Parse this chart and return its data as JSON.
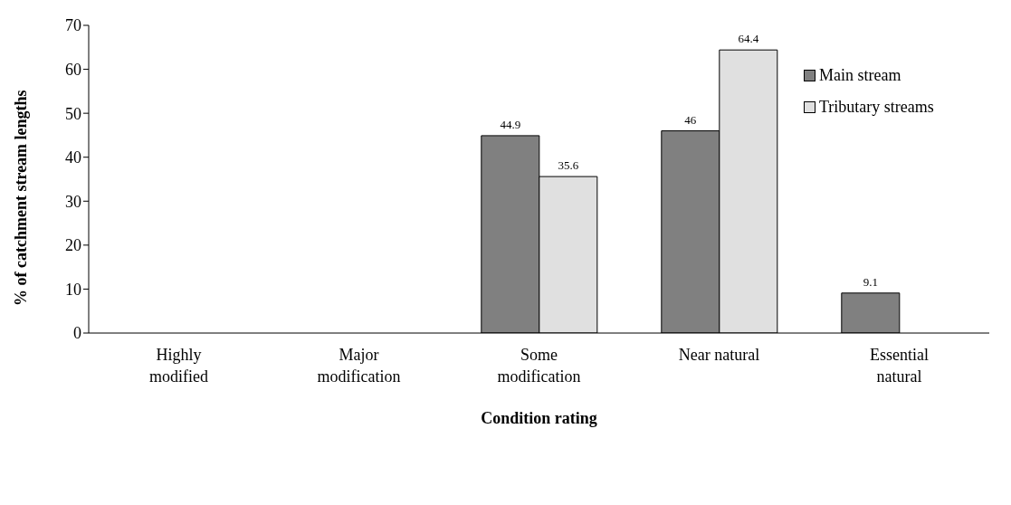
{
  "chart_data": {
    "type": "bar",
    "xlabel": "Condition rating",
    "ylabel": "% of catchment stream lengths",
    "categories": [
      "Highly modified",
      "Major modification",
      "Some modification",
      "Near natural",
      "Essential natural"
    ],
    "series": [
      {
        "name": "Main stream",
        "color": "#808080",
        "values": [
          null,
          null,
          44.9,
          46,
          9.1
        ],
        "value_labels": [
          null,
          null,
          "44.9",
          "46",
          "9.1"
        ]
      },
      {
        "name": "Tributary streams",
        "color": "#e0e0e0",
        "values": [
          null,
          null,
          35.6,
          64.4,
          null
        ],
        "value_labels": [
          null,
          null,
          "35.6",
          "64.4",
          null
        ]
      }
    ],
    "ylim": [
      0,
      70
    ],
    "yticks": [
      0,
      10,
      20,
      30,
      40,
      50,
      60,
      70
    ],
    "grid": false,
    "legend": "right"
  }
}
